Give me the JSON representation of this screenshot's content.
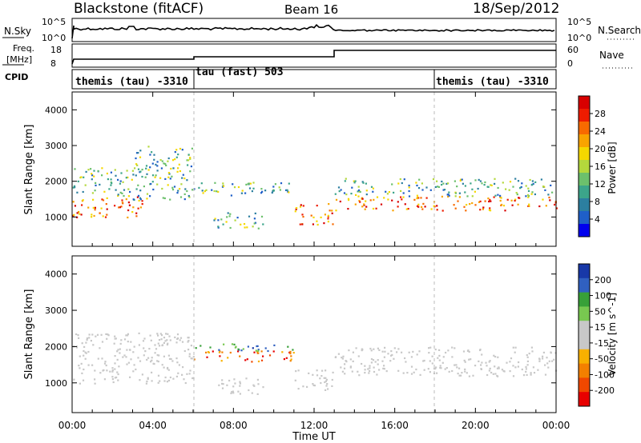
{
  "header": {
    "station": "Blackstone (fitACF)",
    "beam": "Beam 16",
    "date": "18/Sep/2012"
  },
  "strip_labels": {
    "nsky": "N.Sky",
    "nsearch": "N.Search",
    "freq_line1": "Freq.",
    "freq_line2": "[MHz]",
    "nave": "Nave",
    "cpid": "CPID"
  },
  "strip_ticks": {
    "nsky_top": "10^5",
    "nsky_bottom": "10^0",
    "nsearch_top": "10^5",
    "nsearch_bottom": "10^0",
    "freq_top": "18",
    "freq_bottom": "8",
    "nave_top": "60",
    "nave_bottom": "0"
  },
  "cpid_segments": [
    {
      "label": "themis (tau) -3310",
      "start": 0,
      "end": 6
    },
    {
      "label": "tau (fast) 503",
      "start": 6,
      "end": 18
    },
    {
      "label": "themis (tau) -3310",
      "start": 18,
      "end": 24
    }
  ],
  "colors": {
    "power": [
      "#0000ee",
      "#1f5fc8",
      "#2c7fa0",
      "#3ca58a",
      "#6cc06c",
      "#b4d83c",
      "#f5d800",
      "#f9a400",
      "#f86a00",
      "#ee1c00",
      "#d80000"
    ],
    "velocity": [
      "#e80000",
      "#f04800",
      "#f38000",
      "#f8b000",
      "#c8c8c8",
      "#c8c8c8",
      "#78c850",
      "#38a038",
      "#3060c0",
      "#1838a8"
    ]
  },
  "chart_data": [
    {
      "type": "heatmap",
      "name": "power",
      "xlabel": "Time UT",
      "ylabel": "Slant Range [km]",
      "colorbar_label": "Power [dB]",
      "colorbar_ticks": [
        "4",
        "8",
        "12",
        "16",
        "20",
        "24",
        "28"
      ],
      "xlim": [
        0,
        24
      ],
      "ylim": [
        180,
        4500
      ],
      "x_ticks": [
        "00:00",
        "04:00",
        "08:00",
        "12:00",
        "16:00",
        "20:00",
        "00:00"
      ],
      "y_ticks": [
        "1000",
        "2000",
        "3000",
        "4000"
      ],
      "echo_bands": [
        {
          "t0": 0.0,
          "t1": 3.5,
          "r0": 1000,
          "r1": 1600,
          "level": "high"
        },
        {
          "t0": 0.0,
          "t1": 3.0,
          "r0": 1600,
          "r1": 2400,
          "level": "mid"
        },
        {
          "t0": 3.0,
          "t1": 6.0,
          "r0": 1500,
          "r1": 3000,
          "level": "mid"
        },
        {
          "t0": 6.0,
          "t1": 11.0,
          "r0": 1600,
          "r1": 2000,
          "level": "mid"
        },
        {
          "t0": 7.0,
          "t1": 9.5,
          "r0": 700,
          "r1": 1150,
          "level": "mid"
        },
        {
          "t0": 11.0,
          "t1": 13.0,
          "r0": 800,
          "r1": 1400,
          "level": "high"
        },
        {
          "t0": 13.0,
          "t1": 24.0,
          "r0": 1200,
          "r1": 1600,
          "level": "high"
        },
        {
          "t0": 13.0,
          "t1": 24.0,
          "r0": 1600,
          "r1": 2100,
          "level": "mid"
        }
      ]
    },
    {
      "type": "heatmap",
      "name": "velocity",
      "xlabel": "Time UT",
      "ylabel": "Slant Range [km]",
      "colorbar_label": "Velocity [m s^-1]",
      "colorbar_ticks": [
        "200",
        "100",
        "50",
        "15",
        "-15",
        "-50",
        "-100",
        "-200"
      ],
      "xlim": [
        0,
        24
      ],
      "ylim": [
        180,
        4500
      ],
      "x_ticks": [
        "00:00",
        "04:00",
        "08:00",
        "12:00",
        "16:00",
        "20:00",
        "00:00"
      ],
      "y_ticks": [
        "1000",
        "2000",
        "3000",
        "4000"
      ],
      "echo_bands": [
        {
          "t0": 0.0,
          "t1": 6.0,
          "r0": 1000,
          "r1": 2400,
          "level": "low"
        },
        {
          "t0": 6.0,
          "t1": 11.0,
          "r0": 1600,
          "r1": 1900,
          "level": "neg"
        },
        {
          "t0": 6.0,
          "t1": 11.0,
          "r0": 1900,
          "r1": 2100,
          "level": "pos"
        },
        {
          "t0": 7.0,
          "t1": 9.5,
          "r0": 700,
          "r1": 1150,
          "level": "low"
        },
        {
          "t0": 11.0,
          "t1": 13.0,
          "r0": 800,
          "r1": 1400,
          "level": "low"
        },
        {
          "t0": 13.0,
          "t1": 24.0,
          "r0": 1200,
          "r1": 2000,
          "level": "low"
        }
      ]
    }
  ]
}
